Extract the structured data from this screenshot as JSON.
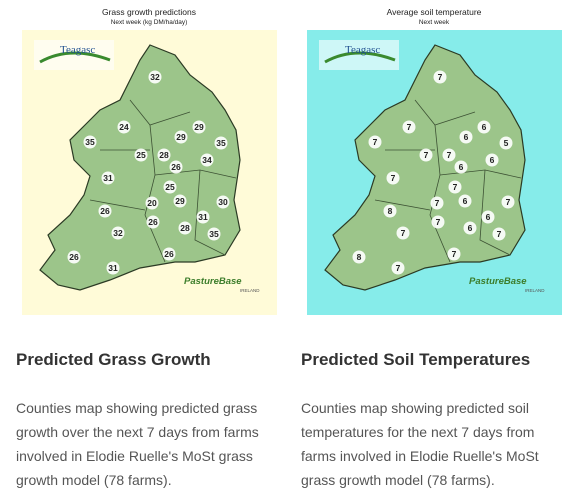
{
  "cards": [
    {
      "map_title": "Grass growth predictions",
      "map_subtitle": "Next week (kg DM/ha/day)",
      "logo_top": "Teagasc",
      "logo_bottom": "PastureBase",
      "logo_bottom_sub": "IRELAND",
      "labels": [
        32,
        24,
        29,
        29,
        35,
        35,
        25,
        28,
        26,
        34,
        31,
        25,
        29,
        30,
        20,
        26,
        31,
        26,
        28,
        32,
        35,
        26,
        26,
        31
      ],
      "heading": "Predicted Grass Growth",
      "description": [
        "Counties map showing predicted grass",
        "growth over the next 7 days from farms",
        "involved in Elodie Ruelle's MoSt grass",
        "growth model (78 farms)."
      ]
    },
    {
      "map_title": "Average soil temperature",
      "map_subtitle": "Next week",
      "logo_top": "Teagasc",
      "logo_bottom": "PastureBase",
      "logo_bottom_sub": "IRELAND",
      "labels": [
        7,
        7,
        6,
        6,
        7,
        5,
        7,
        7,
        6,
        6,
        7,
        7,
        6,
        7,
        7,
        8,
        6,
        7,
        6,
        7,
        7,
        8,
        7,
        7
      ],
      "heading": "Predicted Soil Temperatures",
      "description": [
        "Counties map showing predicted soil",
        "temperatures for the next 7 days from",
        "farms involved in Elodie Ruelle's MoSt",
        "grass growth model (78 farms)."
      ]
    }
  ]
}
